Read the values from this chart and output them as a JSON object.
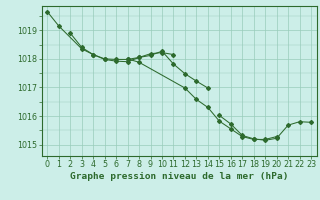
{
  "title": "Graphe pression niveau de la mer (hPa)",
  "line_color": "#2d6a2d",
  "bg_color": "#cceee8",
  "grid_color": "#99ccbb",
  "axis_color": "#2d6a2d",
  "ylim": [
    1014.6,
    1019.85
  ],
  "xlim": [
    -0.5,
    23.5
  ],
  "yticks": [
    1015,
    1016,
    1017,
    1018,
    1019
  ],
  "title_fontsize": 6.8,
  "tick_fontsize": 5.8,
  "line1_x": [
    0,
    1,
    3,
    4,
    5,
    6,
    7,
    8,
    9,
    10,
    11
  ],
  "line1_y": [
    1019.65,
    1019.15,
    1018.35,
    1018.15,
    1018.0,
    1017.98,
    1017.98,
    1018.05,
    1018.18,
    1018.22,
    1018.15
  ],
  "line2_x": [
    2,
    3,
    4,
    5,
    6,
    7,
    8,
    9,
    10,
    11,
    12,
    13,
    14
  ],
  "line2_y": [
    1018.9,
    1018.4,
    1018.15,
    1017.98,
    1017.92,
    1017.9,
    1018.05,
    1018.12,
    1018.27,
    1017.82,
    1017.48,
    1017.22,
    1016.98
  ],
  "line3_x": [
    7,
    8,
    12,
    13,
    14,
    15,
    16,
    17,
    18,
    19,
    20
  ],
  "line3_y": [
    1018.0,
    1017.88,
    1016.98,
    1016.58,
    1016.3,
    1015.82,
    1015.55,
    1015.28,
    1015.18,
    1015.18,
    1015.28
  ],
  "line4_x": [
    15,
    16,
    17,
    18,
    19,
    20,
    21,
    22,
    23
  ],
  "line4_y": [
    1016.02,
    1015.72,
    1015.32,
    1015.2,
    1015.15,
    1015.22,
    1015.68,
    1015.8,
    1015.78
  ]
}
